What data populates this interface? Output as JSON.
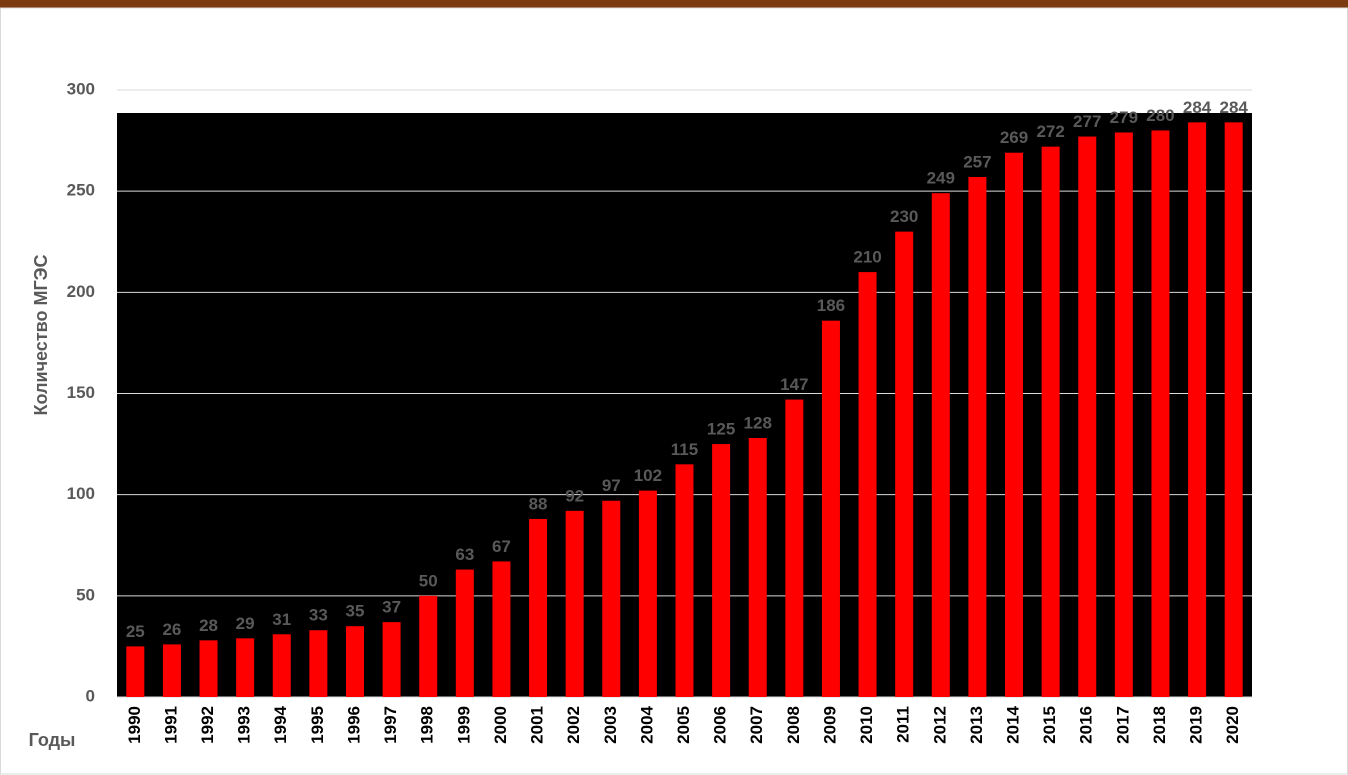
{
  "chart_data": {
    "type": "bar",
    "y_axis_label": "Количество МГЭС",
    "x_axis_label": "Годы",
    "categories": [
      "1990",
      "1991",
      "1992",
      "1993",
      "1994",
      "1995",
      "1996",
      "1997",
      "1998",
      "1999",
      "2000",
      "2001",
      "2002",
      "2003",
      "2004",
      "2005",
      "2006",
      "2007",
      "2008",
      "2009",
      "2010",
      "2011",
      "2012",
      "2013",
      "2014",
      "2015",
      "2016",
      "2017",
      "2018",
      "2019",
      "2020"
    ],
    "values": [
      25,
      26,
      28,
      29,
      31,
      33,
      35,
      37,
      50,
      63,
      67,
      88,
      92,
      97,
      102,
      115,
      125,
      128,
      147,
      186,
      210,
      230,
      249,
      257,
      269,
      272,
      277,
      279,
      280,
      284,
      284
    ],
    "color": "#ff0000",
    "ylim": [
      0,
      300
    ],
    "yticks": [
      0,
      50,
      100,
      150,
      200,
      250,
      300
    ],
    "grid": true
  }
}
